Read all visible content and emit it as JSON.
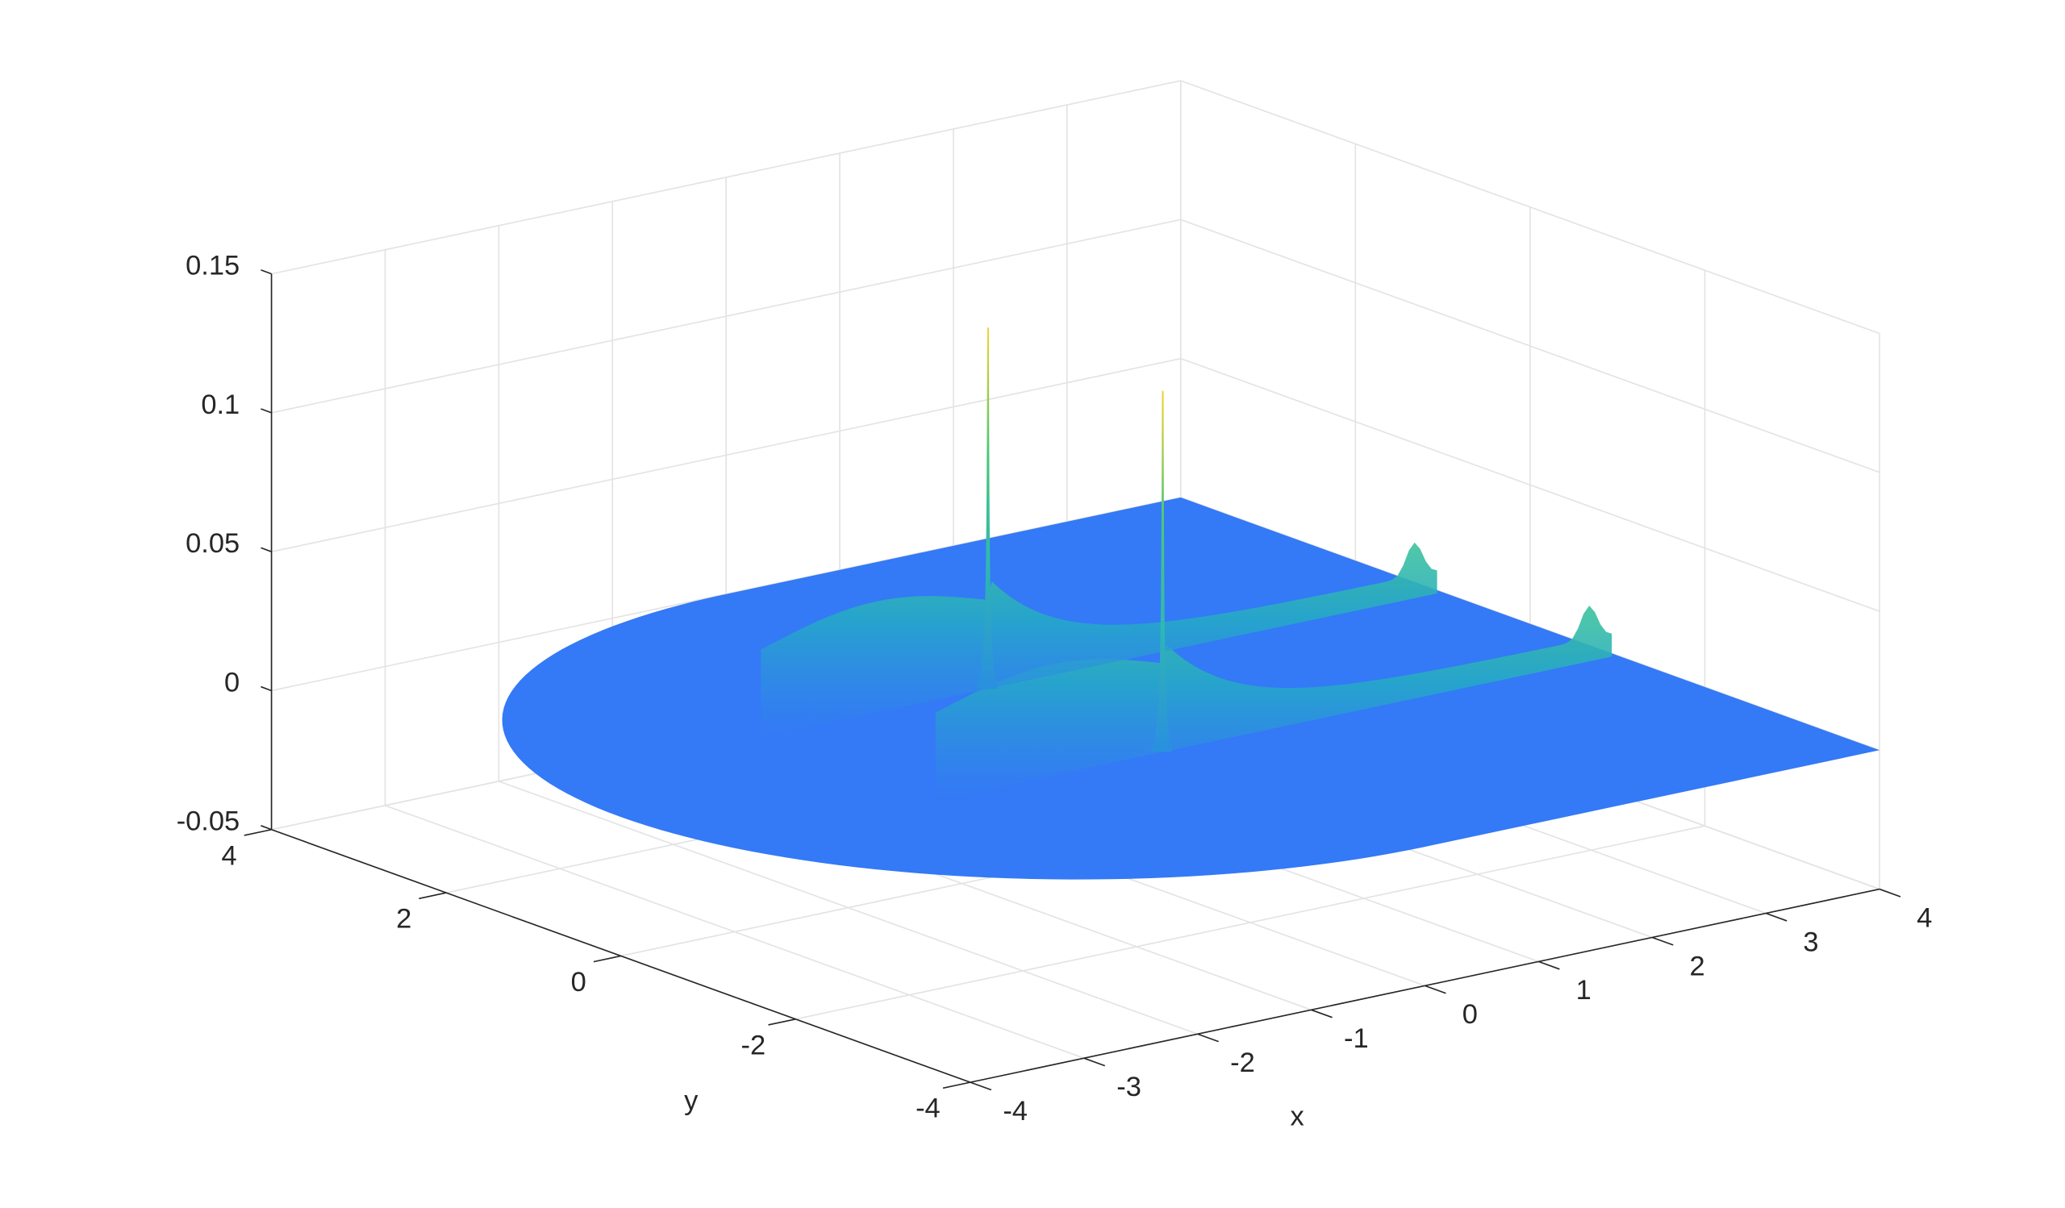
{
  "chart_data": {
    "type": "surface",
    "xlabel": "x",
    "ylabel": "y",
    "xlim": [
      -4,
      4
    ],
    "ylim": [
      -4,
      4
    ],
    "zlim": [
      -0.05,
      0.15
    ],
    "xticks": [
      -4,
      -3,
      -2,
      -1,
      0,
      1,
      2,
      3,
      4
    ],
    "yticks": [
      -4,
      -2,
      0,
      2,
      4
    ],
    "zticks": [
      -0.05,
      0,
      0.05,
      0.1,
      0.15
    ],
    "grid": true,
    "color": "#3479f6",
    "peaks": {
      "x": [
        0,
        0
      ],
      "y": [
        1,
        -1
      ],
      "z": [
        0.13,
        0.13
      ]
    }
  }
}
